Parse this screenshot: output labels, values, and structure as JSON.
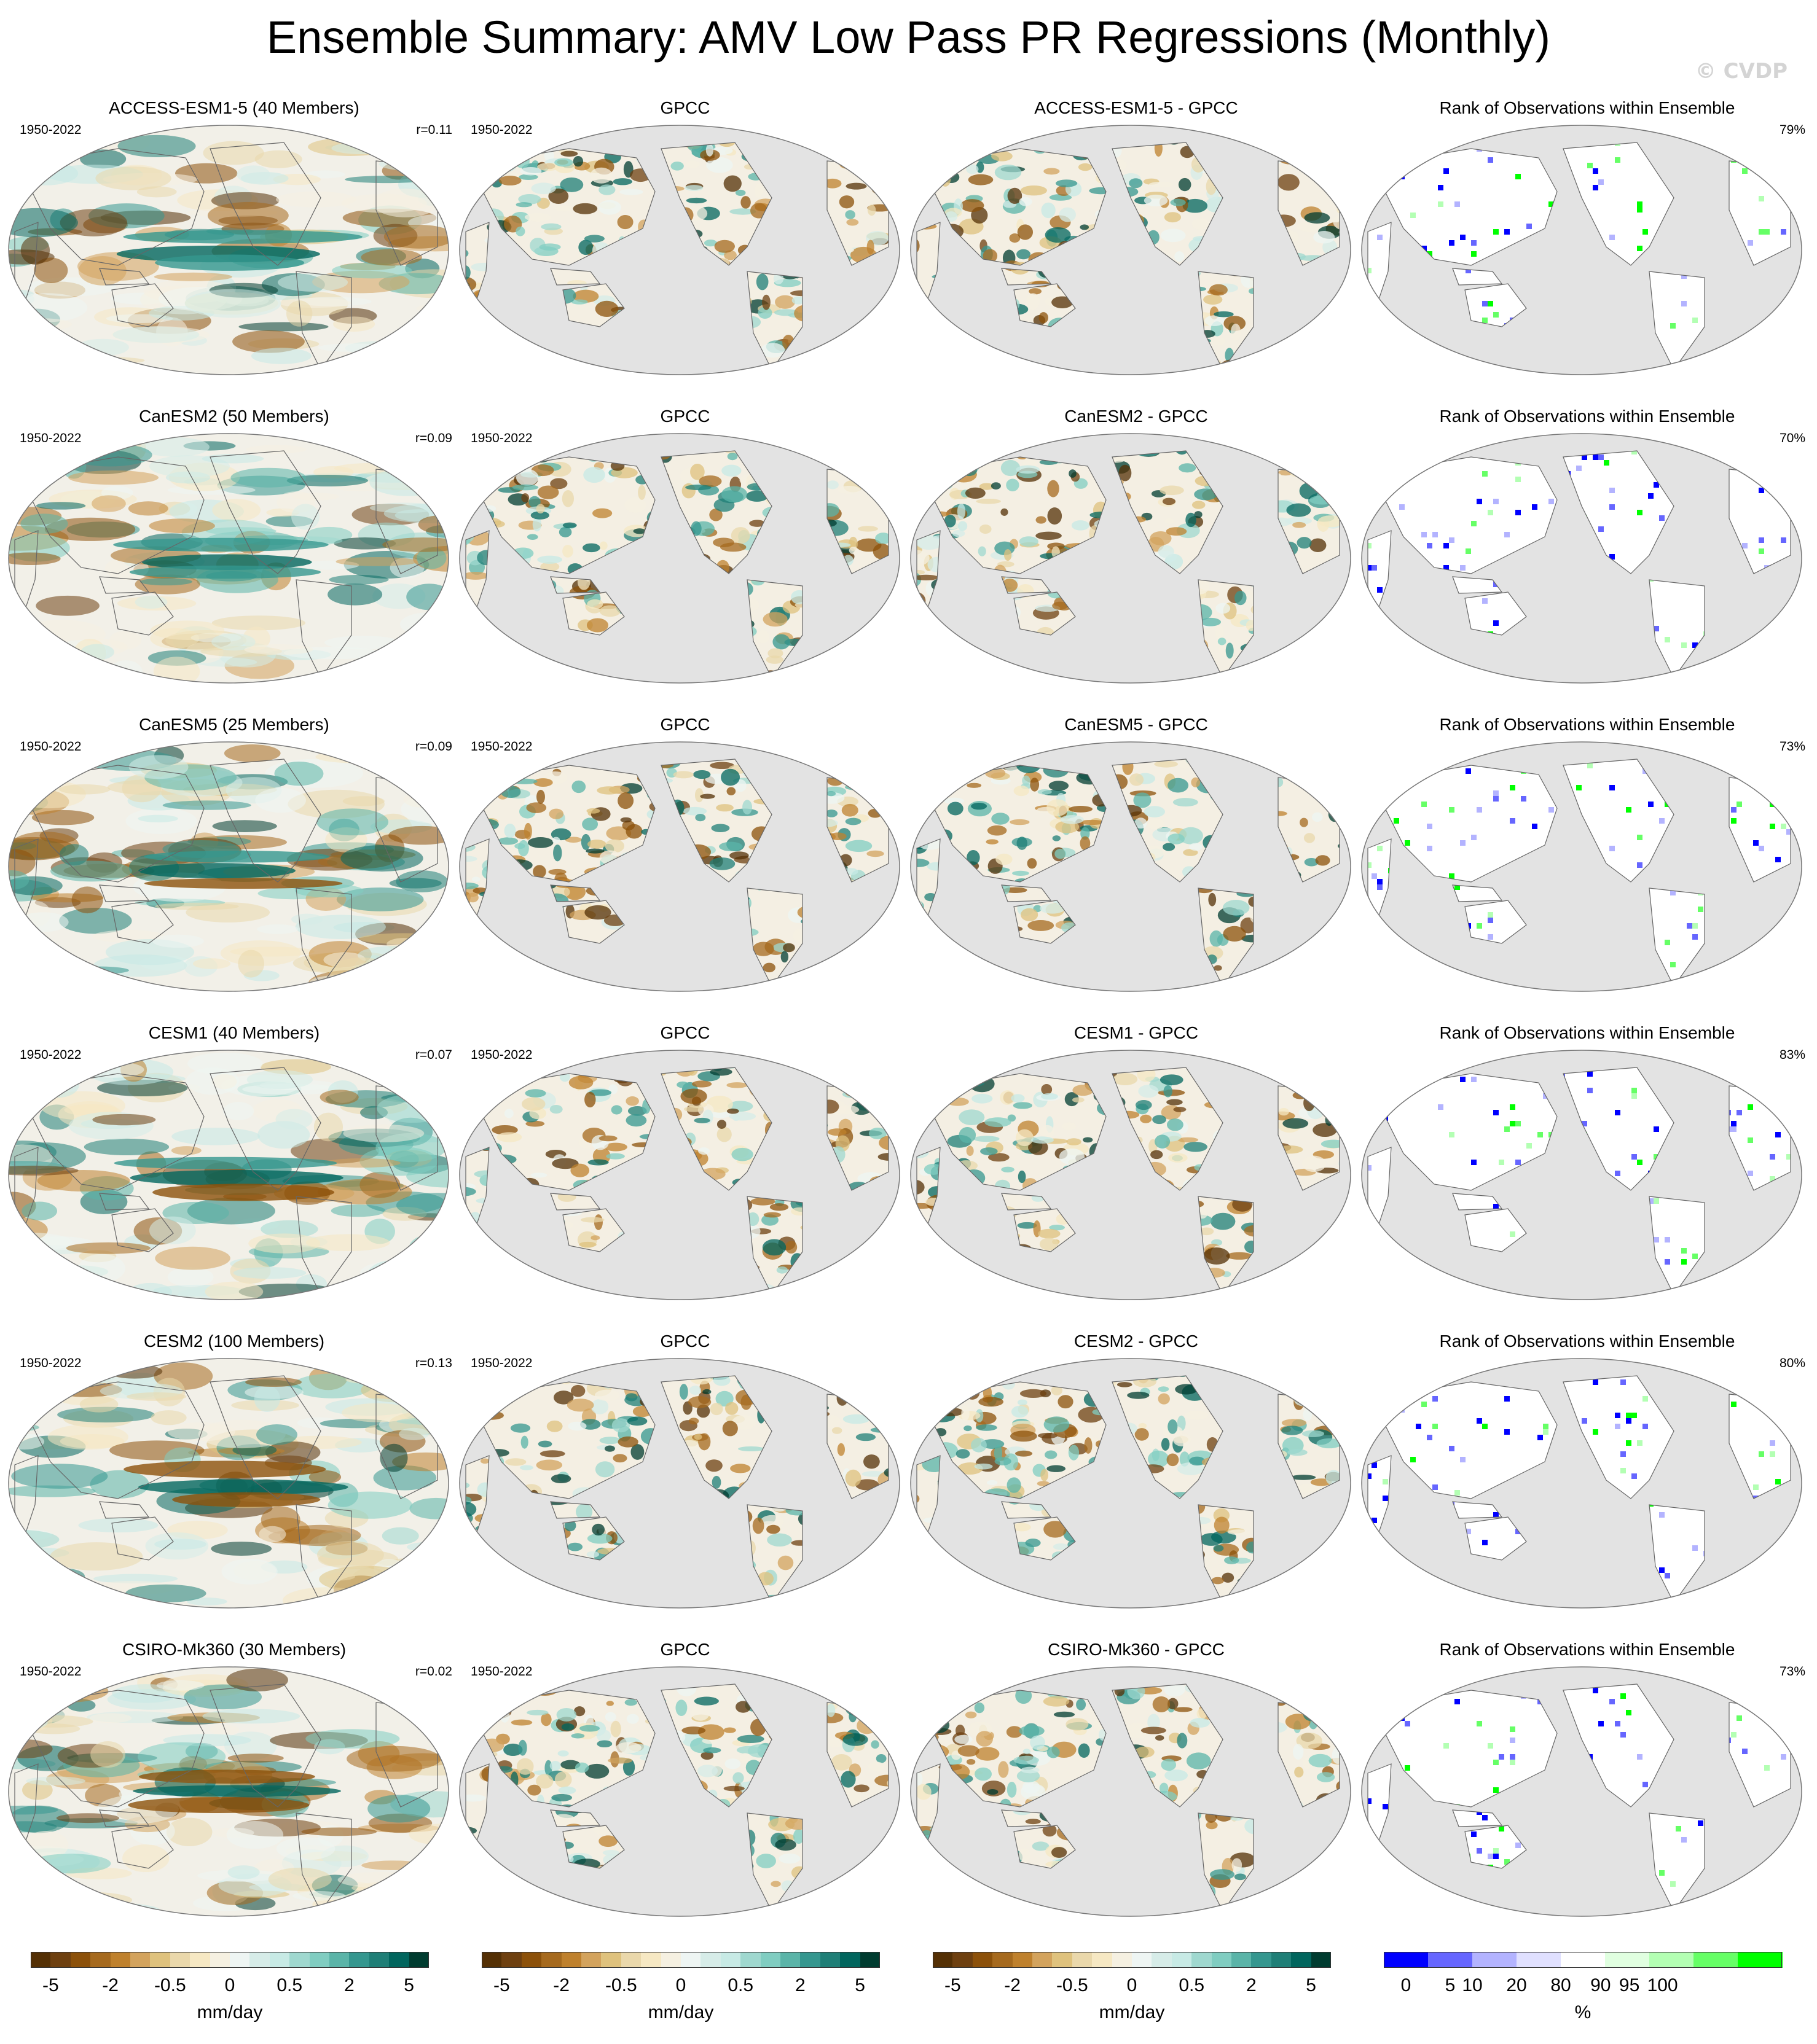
{
  "title": "Ensemble Summary: AMV Low Pass PR Regressions (Monthly)",
  "watermark": "© CVDP",
  "rows": [
    {
      "model_title": "ACCESS-ESM1-5 (40 Members)",
      "period": "1950-2022",
      "r": "r=0.11",
      "diff_title": "ACCESS-ESM1-5 - GPCC",
      "rank_pct": "79%"
    },
    {
      "model_title": "CanESM2 (50 Members)",
      "period": "1950-2022",
      "r": "r=0.09",
      "diff_title": "CanESM2 - GPCC",
      "rank_pct": "70%"
    },
    {
      "model_title": "CanESM5 (25 Members)",
      "period": "1950-2022",
      "r": "r=0.09",
      "diff_title": "CanESM5 - GPCC",
      "rank_pct": "73%"
    },
    {
      "model_title": "CESM1 (40 Members)",
      "period": "1950-2022",
      "r": "r=0.07",
      "diff_title": "CESM1 - GPCC",
      "rank_pct": "83%"
    },
    {
      "model_title": "CESM2 (100 Members)",
      "period": "1950-2022",
      "r": "r=0.13",
      "diff_title": "CESM2 - GPCC",
      "rank_pct": "80%"
    },
    {
      "model_title": "CSIRO-Mk360 (30 Members)",
      "period": "1950-2022",
      "r": "r=0.02",
      "diff_title": "CSIRO-Mk360 - GPCC",
      "rank_pct": "73%"
    }
  ],
  "obs": {
    "title": "GPCC",
    "period": "1950-2022"
  },
  "rank_title": "Rank of Observations within Ensemble",
  "colorbar_pr": {
    "ticks": [
      "-5",
      "-2",
      "-0.5",
      "0",
      "0.5",
      "2",
      "5"
    ],
    "unit": "mm/day",
    "colors": [
      "#543005",
      "#6e4010",
      "#8c510a",
      "#a66a1e",
      "#bf812d",
      "#d3a35d",
      "#dfc27d",
      "#ead8ab",
      "#f6e8c3",
      "#f5f0e1",
      "#eef5f3",
      "#d6ece8",
      "#c7eae5",
      "#9fd8cf",
      "#80cdc1",
      "#5ab4a8",
      "#35978f",
      "#1f7f77",
      "#01665e",
      "#003c30"
    ]
  },
  "colorbar_rank": {
    "ticks": [
      "0",
      "5",
      "10",
      "20",
      "80",
      "90",
      "95",
      "100"
    ],
    "unit": "%",
    "colors": [
      "#0000ff",
      "#6666ff",
      "#b3b3ff",
      "#e0e0ff",
      "#ffffff",
      "#e0ffe0",
      "#b3ffb3",
      "#66ff66",
      "#00ff00"
    ]
  },
  "map_colors": {
    "land_bg": "#e3e3e3",
    "ocean_neutral": "#f2f0e8",
    "coast": "#666666"
  }
}
